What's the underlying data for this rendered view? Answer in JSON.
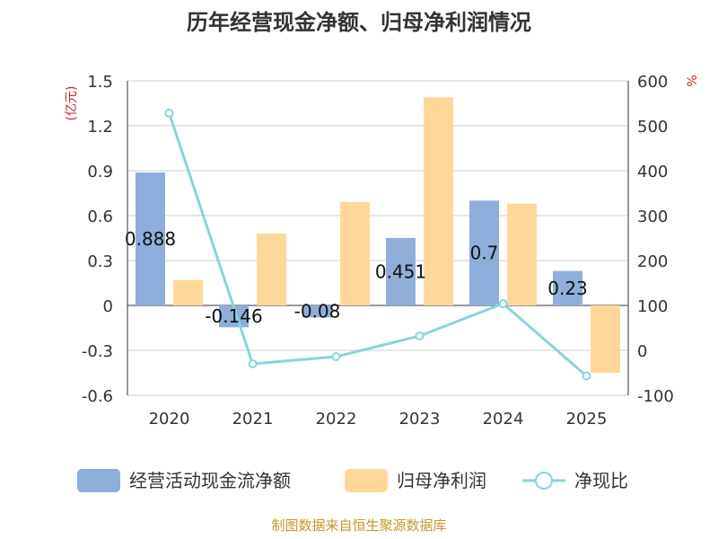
{
  "chart_data": {
    "type": "bar",
    "title": "历年经营现金净额、归母净利润情况",
    "categories": [
      "2020",
      "2021",
      "2022",
      "2023",
      "2024",
      "2025"
    ],
    "left_axis": {
      "unit": "(亿元)",
      "ylim": [
        -0.6,
        1.5
      ],
      "ticks": [
        1.5,
        1.2,
        0.9,
        0.6,
        0.3,
        0,
        -0.3,
        -0.6
      ],
      "tick_labels": [
        "1.5",
        "1.2",
        "0.9",
        "0.6",
        "0.3",
        "0",
        "-0.3",
        "-0.6"
      ]
    },
    "right_axis": {
      "unit": "%",
      "ylim": [
        -100,
        600
      ],
      "ticks": [
        600,
        500,
        400,
        300,
        200,
        100,
        0,
        -100
      ],
      "tick_labels": [
        "600",
        "500",
        "400",
        "300",
        "200",
        "100",
        "0",
        "-100"
      ]
    },
    "series": [
      {
        "name": "经营活动现金流净额",
        "type": "bar",
        "axis": "left",
        "color": "#8faedb",
        "values": [
          0.888,
          -0.146,
          -0.08,
          0.451,
          0.7,
          0.23
        ],
        "labels": [
          "0.888",
          "-0.146",
          "-0.08",
          "0.451",
          "0.7",
          "0.23"
        ]
      },
      {
        "name": "归母净利润",
        "type": "bar",
        "axis": "left",
        "color": "#ffd899",
        "values": [
          0.17,
          0.48,
          0.69,
          1.39,
          0.68,
          -0.45
        ]
      },
      {
        "name": "净现比",
        "type": "line",
        "axis": "right",
        "color": "#89d3dc",
        "values": [
          528,
          -30,
          -14,
          32,
          104,
          -57
        ]
      }
    ],
    "legend_position": "bottom",
    "grid": true,
    "source": "制图数据来自恒生聚源数据库"
  }
}
